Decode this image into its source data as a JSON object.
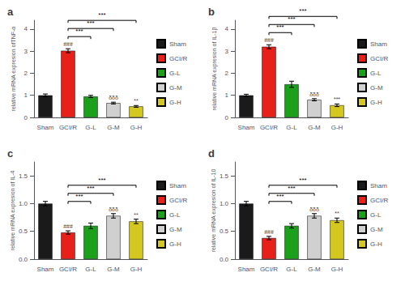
{
  "chart_data": [
    {
      "type": "bar",
      "title": "a",
      "ylabel": "relative mRNA expresion ofTNF-α",
      "categories": [
        "Sham",
        "GCI/R",
        "G-L",
        "G-M",
        "G-H"
      ],
      "values": [
        1.0,
        3.02,
        0.95,
        0.65,
        0.5
      ],
      "errors": [
        0.06,
        0.09,
        0.05,
        0.04,
        0.04
      ],
      "colors": [
        "#1a1a1a",
        "#e8201a",
        "#1aa01a",
        "#d0d0d0",
        "#d4c820"
      ],
      "ylim": [
        0,
        4.4
      ],
      "yticks": [
        0,
        1,
        2,
        3,
        4
      ],
      "grid": false,
      "legend": "right",
      "annotations": [
        {
          "category": "GCI/R",
          "text": "###"
        },
        {
          "category": "G-M",
          "text": "δδδ"
        },
        {
          "category": "G-H",
          "text": "**"
        }
      ],
      "brackets": [
        {
          "from": "GCI/R",
          "to": "G-L",
          "text": "***"
        },
        {
          "from": "GCI/R",
          "to": "G-M",
          "text": "***"
        },
        {
          "from": "GCI/R",
          "to": "G-H",
          "text": "***"
        }
      ]
    },
    {
      "type": "bar",
      "title": "b",
      "ylabel": "relative mRNA expresion of IL-1β",
      "categories": [
        "Sham",
        "GCI/R",
        "G-L",
        "G-M",
        "G-H"
      ],
      "values": [
        1.0,
        3.2,
        1.5,
        0.8,
        0.55
      ],
      "errors": [
        0.05,
        0.09,
        0.14,
        0.05,
        0.06
      ],
      "colors": [
        "#1a1a1a",
        "#e8201a",
        "#1aa01a",
        "#d0d0d0",
        "#d4c820"
      ],
      "ylim": [
        0,
        4.4
      ],
      "yticks": [
        0,
        1,
        2,
        3,
        4
      ],
      "grid": false,
      "legend": "right",
      "annotations": [
        {
          "category": "GCI/R",
          "text": "###"
        },
        {
          "category": "G-M",
          "text": "δδδ"
        },
        {
          "category": "G-H",
          "text": "***"
        }
      ],
      "brackets": [
        {
          "from": "GCI/R",
          "to": "G-L",
          "text": "***"
        },
        {
          "from": "GCI/R",
          "to": "G-M",
          "text": "***"
        },
        {
          "from": "GCI/R",
          "to": "G-H",
          "text": "***"
        }
      ]
    },
    {
      "type": "bar",
      "title": "c",
      "ylabel": "relative mRNA expresion of IL-4",
      "categories": [
        "Sham",
        "GCI/R",
        "G-L",
        "G-M",
        "G-H"
      ],
      "values": [
        1.0,
        0.48,
        0.6,
        0.78,
        0.68
      ],
      "errors": [
        0.04,
        0.03,
        0.05,
        0.04,
        0.04
      ],
      "colors": [
        "#1a1a1a",
        "#e8201a",
        "#1aa01a",
        "#d0d0d0",
        "#d4c820"
      ],
      "ylim": [
        0,
        1.75
      ],
      "yticks": [
        {
          "value": 0.0,
          "label": "0.0"
        },
        0.5,
        {
          "value": 1.0,
          "label": "1.0"
        },
        1.5
      ],
      "grid": false,
      "legend": "right",
      "annotations": [
        {
          "category": "GCI/R",
          "text": "###"
        },
        {
          "category": "G-M",
          "text": "δδδ"
        },
        {
          "category": "G-H",
          "text": "**"
        }
      ],
      "brackets": [
        {
          "from": "GCI/R",
          "to": "G-L",
          "text": "***"
        },
        {
          "from": "GCI/R",
          "to": "G-M",
          "text": "***"
        },
        {
          "from": "GCI/R",
          "to": "G-H",
          "text": "***"
        }
      ]
    },
    {
      "type": "bar",
      "title": "d",
      "ylabel": "relative mRNA expresion of IL-10",
      "categories": [
        "Sham",
        "GCI/R",
        "G-L",
        "G-M",
        "G-H"
      ],
      "values": [
        1.0,
        0.38,
        0.6,
        0.78,
        0.7
      ],
      "errors": [
        0.04,
        0.03,
        0.04,
        0.04,
        0.04
      ],
      "colors": [
        "#1a1a1a",
        "#e8201a",
        "#1aa01a",
        "#d0d0d0",
        "#d4c820"
      ],
      "ylim": [
        0,
        1.75
      ],
      "yticks": [
        {
          "value": 0.0,
          "label": "0.0"
        },
        0.5,
        {
          "value": 1.0,
          "label": "1.0"
        },
        1.5
      ],
      "grid": false,
      "legend": "right",
      "annotations": [
        {
          "category": "GCI/R",
          "text": "###"
        },
        {
          "category": "G-M",
          "text": "δδδ"
        },
        {
          "category": "G-H",
          "text": "**"
        }
      ],
      "brackets": [
        {
          "from": "GCI/R",
          "to": "G-L",
          "text": "***"
        },
        {
          "from": "GCI/R",
          "to": "G-M",
          "text": "***"
        },
        {
          "from": "GCI/R",
          "to": "G-H",
          "text": "***"
        }
      ]
    }
  ]
}
